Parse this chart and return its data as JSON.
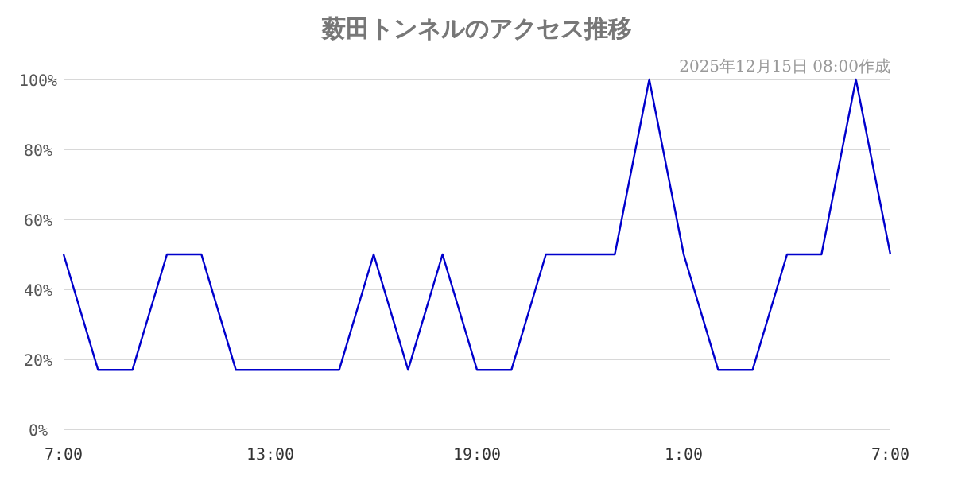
{
  "chart_data": {
    "type": "line",
    "title": "薮田トンネルのアクセス推移",
    "subtitle": "2025年12月15日 08:00作成",
    "x": [
      "2025-12-14T07:00",
      "2025-12-14T08:00",
      "2025-12-14T09:00",
      "2025-12-14T10:00",
      "2025-12-14T11:00",
      "2025-12-14T12:00",
      "2025-12-14T13:00",
      "2025-12-14T14:00",
      "2025-12-14T15:00",
      "2025-12-14T16:00",
      "2025-12-14T17:00",
      "2025-12-14T18:00",
      "2025-12-14T19:00",
      "2025-12-14T20:00",
      "2025-12-14T21:00",
      "2025-12-14T22:00",
      "2025-12-14T23:00",
      "2025-12-15T00:00",
      "2025-12-15T01:00",
      "2025-12-15T02:00",
      "2025-12-15T03:00",
      "2025-12-15T04:00",
      "2025-12-15T05:00",
      "2025-12-15T06:00",
      "2025-12-15T07:00"
    ],
    "series": [
      {
        "color": "#0000cc",
        "values": [
          50,
          17,
          17,
          50,
          50,
          17,
          17,
          17,
          17,
          50,
          17,
          50,
          17,
          17,
          50,
          50,
          50,
          100,
          50,
          17,
          17,
          50,
          50,
          100,
          50
        ]
      }
    ],
    "xlim": [
      "2025-12-14T07:00",
      "2025-12-15T07:00"
    ],
    "xticks": [
      {
        "value": "2025-12-14T07:00",
        "label": "7:00"
      },
      {
        "value": "2025-12-14T13:00",
        "label": "13:00"
      },
      {
        "value": "2025-12-14T19:00",
        "label": "19:00"
      },
      {
        "value": "2025-12-15T01:00",
        "label": "1:00"
      },
      {
        "value": "2025-12-15T07:00",
        "label": "7:00"
      }
    ],
    "ylim": [
      0,
      100
    ],
    "yticks": [
      {
        "value": 0,
        "label": "0%"
      },
      {
        "value": 20,
        "label": "20%"
      },
      {
        "value": 40,
        "label": "40%"
      },
      {
        "value": 60,
        "label": "60%"
      },
      {
        "value": 80,
        "label": "80%"
      },
      {
        "value": 100,
        "label": "100%"
      }
    ],
    "grid": "y",
    "marker": "none",
    "line_style": "solid"
  }
}
